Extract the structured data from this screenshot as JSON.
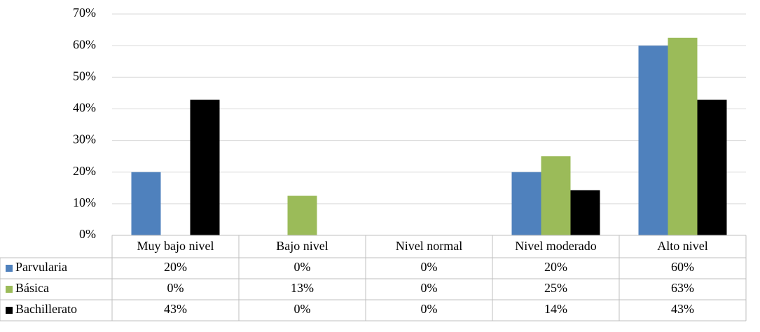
{
  "chart_data": {
    "type": "bar",
    "categories": [
      "Muy bajo nivel",
      "Bajo nivel",
      "Nivel normal",
      "Nivel moderado",
      "Alto nivel"
    ],
    "series": [
      {
        "name": "Parvularia",
        "color": "#4f81bd",
        "values": [
          20,
          0,
          0,
          20,
          60
        ],
        "value_labels": [
          "20%",
          "0%",
          "0%",
          "20%",
          "60%"
        ]
      },
      {
        "name": "Básica",
        "color": "#9bbb59",
        "values": [
          0,
          12.5,
          0,
          25,
          62.5
        ],
        "value_labels": [
          "0%",
          "13%",
          "0%",
          "25%",
          "63%"
        ]
      },
      {
        "name": "Bachillerato",
        "color": "#000000",
        "values": [
          42.86,
          0,
          0,
          14.29,
          42.86
        ],
        "value_labels": [
          "43%",
          "0%",
          "0%",
          "14%",
          "43%"
        ]
      }
    ],
    "ylim": [
      0,
      70
    ],
    "yticks": [
      {
        "value": 0,
        "label": "0%"
      },
      {
        "value": 10,
        "label": "10%"
      },
      {
        "value": 20,
        "label": "20%"
      },
      {
        "value": 30,
        "label": "30%"
      },
      {
        "value": 40,
        "label": "40%"
      },
      {
        "value": 50,
        "label": "50%"
      },
      {
        "value": 60,
        "label": "60%"
      },
      {
        "value": 70,
        "label": "70%"
      }
    ],
    "grid": true
  }
}
